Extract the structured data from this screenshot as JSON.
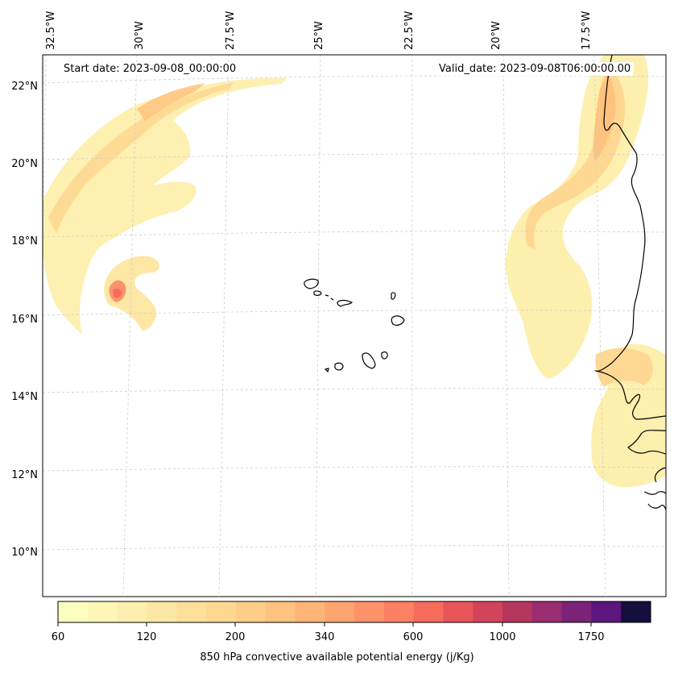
{
  "annotations": {
    "start": "Start date: 2023-09-08_00:00:00",
    "valid": "Valid_date: 2023-09-08T06:00:00.00"
  },
  "lon_labels": [
    "32.5°W",
    "30°W",
    "27.5°W",
    "25°W",
    "22.5°W",
    "20°W",
    "17.5°W"
  ],
  "lat_labels": [
    "22°N",
    "20°N",
    "18°N",
    "16°N",
    "14°N",
    "12°N",
    "10°N"
  ],
  "colorbar": {
    "label": "850 hPa convective available potential energy (j/Kg)",
    "tick_labels": [
      "60",
      "120",
      "200",
      "340",
      "600",
      "1000",
      "1750"
    ],
    "colors": [
      "#fcfdbf",
      "#fdf6b6",
      "#fdefad",
      "#fde7a4",
      "#fee09b",
      "#fed892",
      "#fece88",
      "#fec37f",
      "#feb577",
      "#fea56f",
      "#fe936b",
      "#fc8062",
      "#f56b5c",
      "#e85558",
      "#d2435c",
      "#b5375e",
      "#982d6f",
      "#7a2378",
      "#5c167d",
      "#150f3d"
    ],
    "n_bins": 20
  },
  "legend_colors": {
    "coast": "#000000",
    "grid": "#cccccc"
  }
}
